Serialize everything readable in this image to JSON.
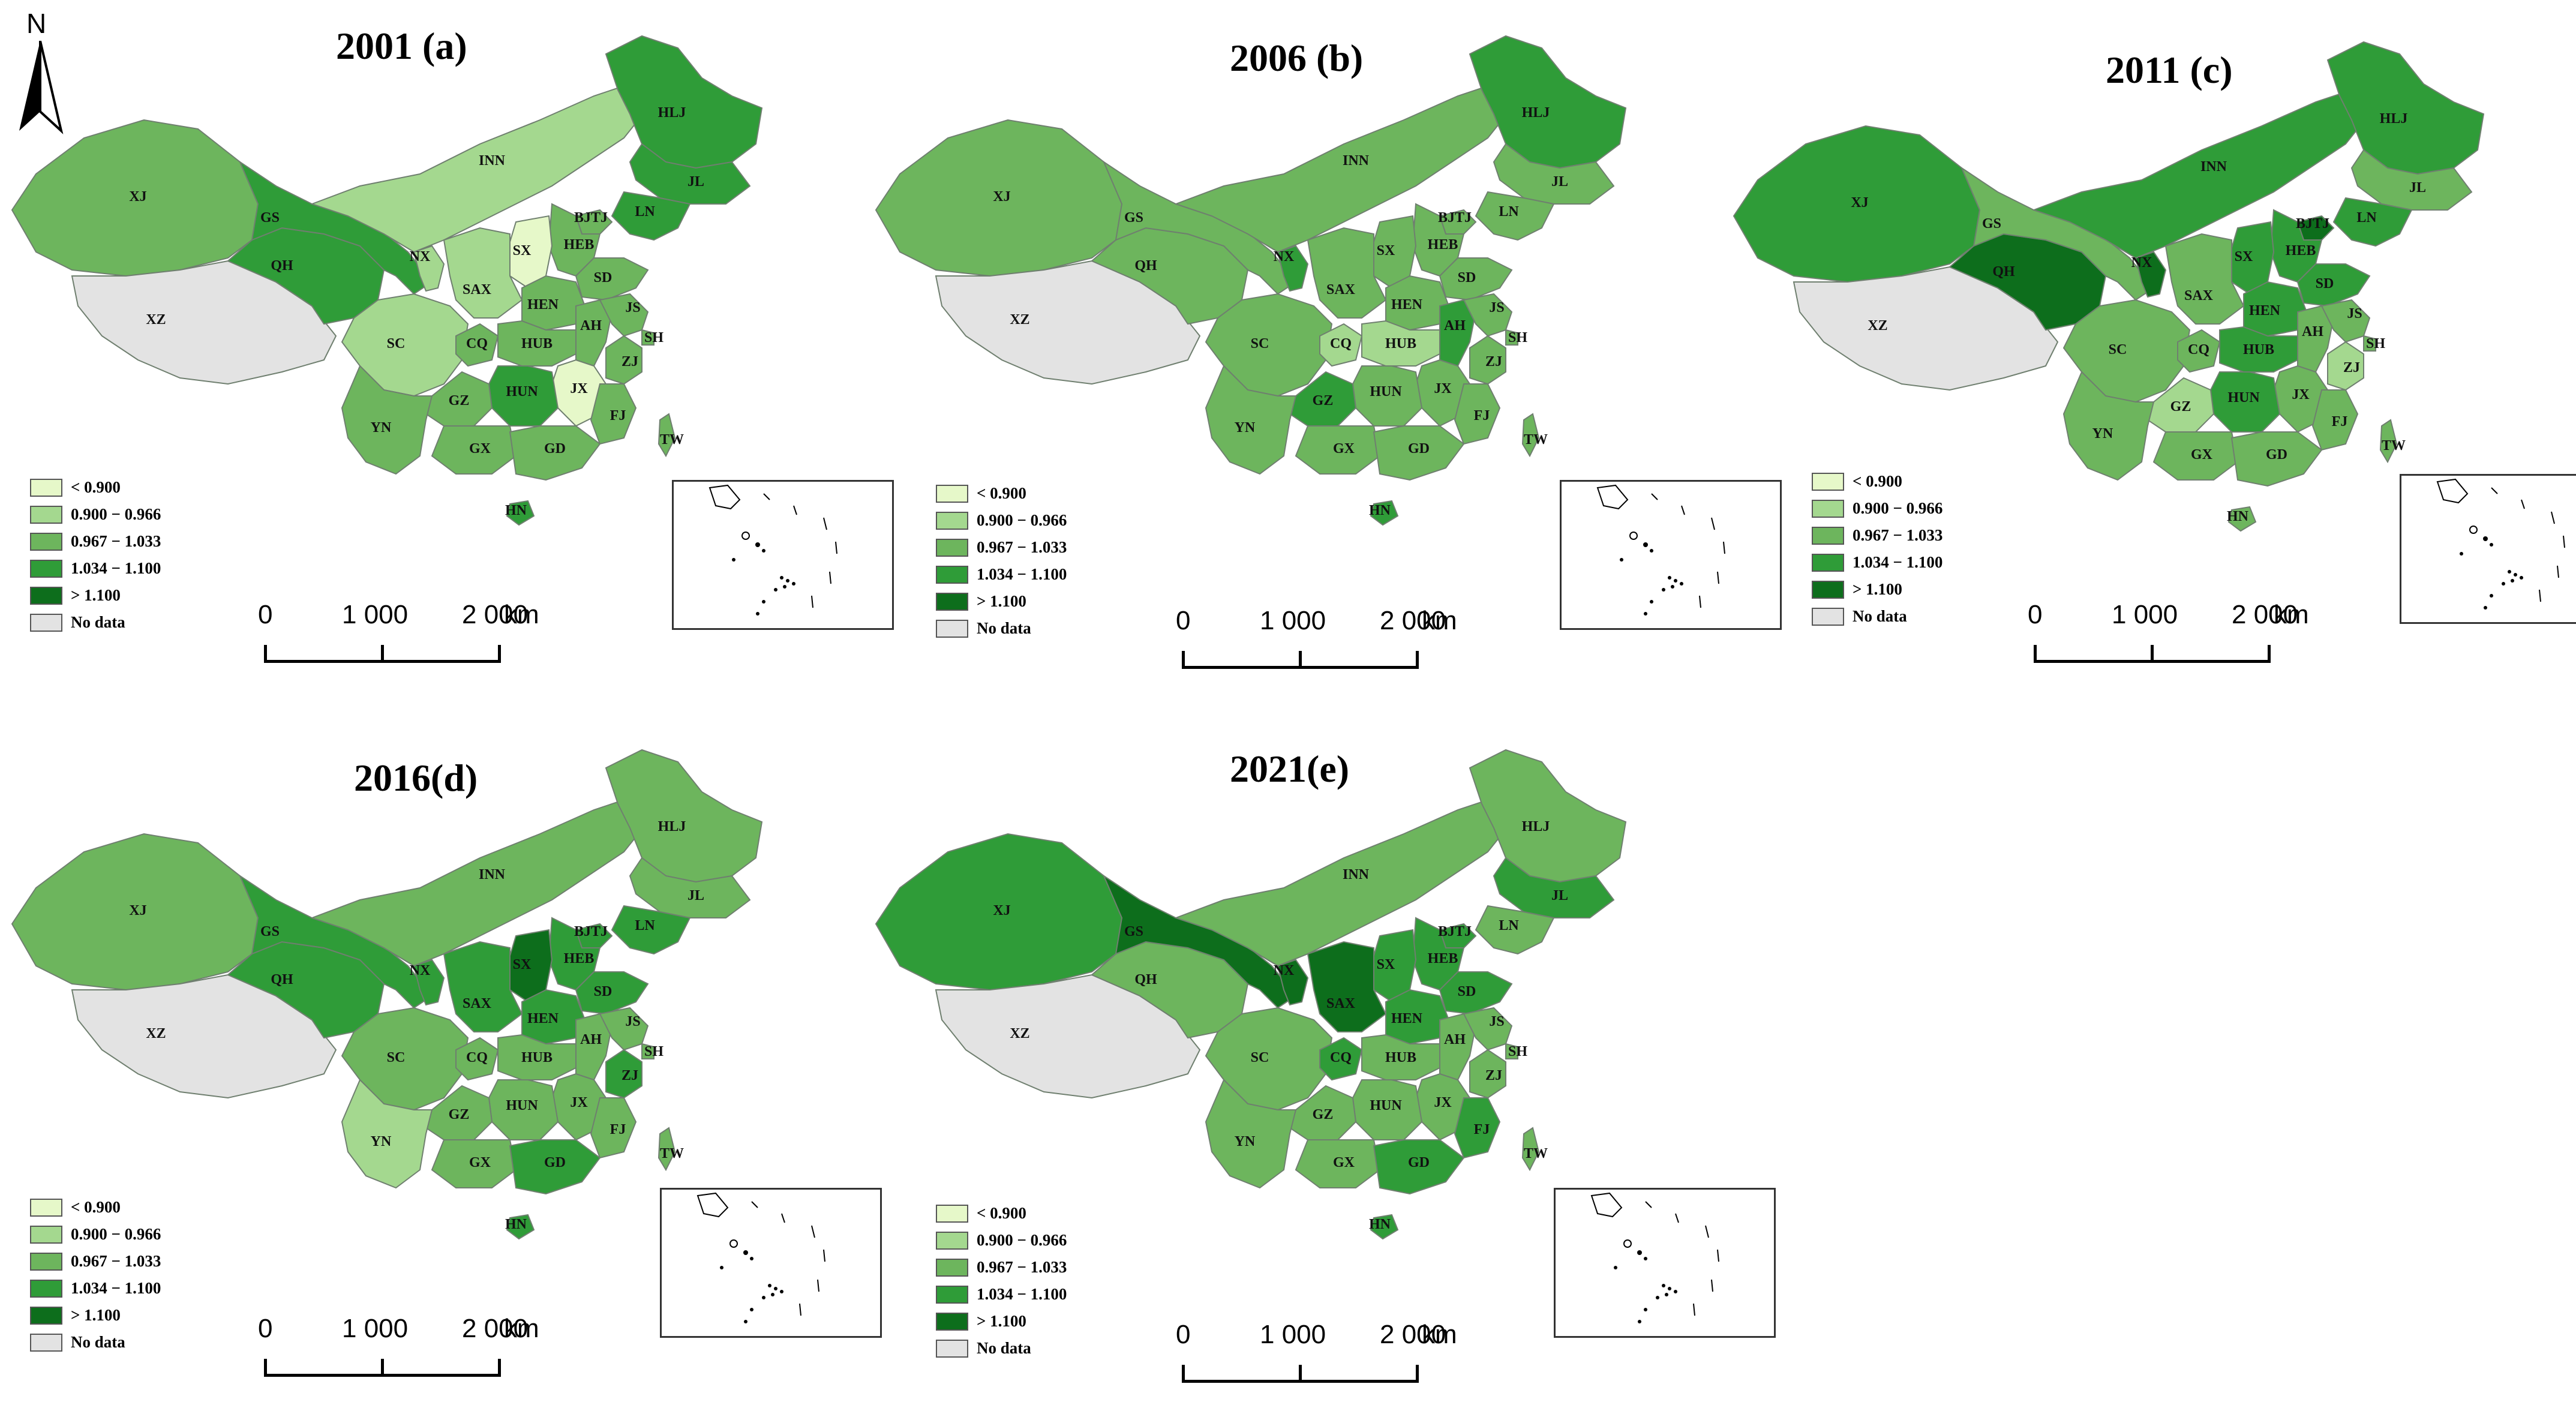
{
  "north_label": "N",
  "legend": {
    "items": [
      {
        "label": "< 0.900",
        "color": "#e6f8c9"
      },
      {
        "label": "0.900 − 0.966",
        "color": "#a4d88f"
      },
      {
        "label": "0.967 − 1.033",
        "color": "#6db55d"
      },
      {
        "label": "1.034 − 1.100",
        "color": "#2f9c38"
      },
      {
        "label": "> 1.100",
        "color": "#0d6e1c"
      },
      {
        "label": "No data",
        "color": "#e3e3e3"
      }
    ]
  },
  "scale": {
    "zero": "0",
    "mid": "1 000",
    "max": "2 000",
    "unit": "km"
  },
  "classes": {
    "c1": "#e6f8c9",
    "c2": "#a4d88f",
    "c3": "#6db55d",
    "c4": "#2f9c38",
    "c5": "#0d6e1c",
    "nodata": "#e3e3e3"
  },
  "panels": [
    {
      "title": "2001 (a)",
      "values": {
        "XJ": "c3",
        "XZ": "nodata",
        "QH": "c4",
        "GS": "c4",
        "NX": "c2",
        "INN": "c2",
        "HLJ": "c4",
        "JL": "c4",
        "LN": "c4",
        "BJTJ": "c3",
        "HEB": "c3",
        "SX": "c1",
        "SD": "c3",
        "SAX": "c2",
        "HEN": "c3",
        "SC": "c2",
        "CQ": "c3",
        "HUB": "c3",
        "AH": "c3",
        "JS": "c3",
        "SH": "c3",
        "ZJ": "c3",
        "JX": "c1",
        "HUN": "c4",
        "GZ": "c3",
        "YN": "c3",
        "GX": "c3",
        "GD": "c3",
        "FJ": "c3",
        "HN": "c4",
        "TW": "c3"
      },
      "labels": [
        "XJ",
        "XZ",
        "GS",
        "QH",
        "NX",
        "INN",
        "HLJ",
        "JL",
        "LN",
        "BJTJ",
        "SX",
        "HEB",
        "SD",
        "SAX",
        "HEN",
        "SC",
        "CQ",
        "HUB",
        "AH",
        "JS",
        "SH",
        "ZJ",
        "JX",
        "HUN",
        "GZ",
        "FJ",
        "YN",
        "GX",
        "GD",
        "TW",
        "HN"
      ]
    },
    {
      "title": "2006 (b)",
      "values": {
        "XJ": "c3",
        "XZ": "nodata",
        "QH": "c3",
        "GS": "c3",
        "NX": "c4",
        "INN": "c3",
        "HLJ": "c4",
        "JL": "c3",
        "LN": "c3",
        "BJTJ": "c3",
        "HEB": "c3",
        "SX": "c3",
        "SD": "c3",
        "SAX": "c3",
        "HEN": "c3",
        "SC": "c3",
        "CQ": "c2",
        "HUB": "c2",
        "AH": "c4",
        "JS": "c3",
        "SH": "c3",
        "ZJ": "c3",
        "JX": "c3",
        "HUN": "c3",
        "GZ": "c4",
        "YN": "c3",
        "GX": "c3",
        "GD": "c3",
        "FJ": "c3",
        "HN": "c4",
        "TW": "c3"
      },
      "labels": [
        "XJ",
        "XZ",
        "GS",
        "QH",
        "NX",
        "INN",
        "HLJ",
        "JL",
        "LN",
        "BJTJ",
        "SX",
        "HEB",
        "SD",
        "SAX",
        "HEN",
        "SC",
        "CQ",
        "HUB",
        "AH",
        "JS",
        "SH",
        "ZJ",
        "JX",
        "HUN",
        "GZ",
        "FJ",
        "YN",
        "GX",
        "GD",
        "TW",
        "HN"
      ]
    },
    {
      "title": "2011 (c)",
      "values": {
        "XJ": "c4",
        "XZ": "nodata",
        "QH": "c5",
        "GS": "c3",
        "NX": "c5",
        "INN": "c4",
        "HLJ": "c4",
        "JL": "c3",
        "LN": "c4",
        "BJTJ": "c5",
        "HEB": "c4",
        "SX": "c4",
        "SD": "c4",
        "SAX": "c3",
        "HEN": "c4",
        "SC": "c3",
        "CQ": "c3",
        "HUB": "c4",
        "AH": "c3",
        "JS": "c3",
        "SH": "c3",
        "ZJ": "c2",
        "JX": "c3",
        "HUN": "c4",
        "GZ": "c2",
        "YN": "c3",
        "GX": "c3",
        "GD": "c3",
        "FJ": "c3",
        "HN": "c3",
        "TW": "c3"
      },
      "labels": [
        "XJ",
        "XZ",
        "GS",
        "QH",
        "NX",
        "INN",
        "HLJ",
        "JL",
        "LN",
        "BJTJ",
        "SX",
        "HEB",
        "SD",
        "SAX",
        "HEN",
        "SC",
        "CQ",
        "HUB",
        "AH",
        "JS",
        "SH",
        "ZJ",
        "JX",
        "HUN",
        "GZ",
        "FJ",
        "YN",
        "GX",
        "GD",
        "TW",
        "HN"
      ]
    },
    {
      "title": "2016(d)",
      "values": {
        "XJ": "c3",
        "XZ": "nodata",
        "QH": "c4",
        "GS": "c4",
        "NX": "c4",
        "INN": "c3",
        "HLJ": "c3",
        "JL": "c3",
        "LN": "c4",
        "BJTJ": "c4",
        "HEB": "c4",
        "SX": "c5",
        "SD": "c4",
        "SAX": "c4",
        "HEN": "c4",
        "SC": "c3",
        "CQ": "c3",
        "HUB": "c3",
        "AH": "c3",
        "JS": "c3",
        "SH": "c3",
        "ZJ": "c4",
        "JX": "c3",
        "HUN": "c3",
        "GZ": "c3",
        "YN": "c2",
        "GX": "c3",
        "GD": "c4",
        "FJ": "c3",
        "HN": "c4",
        "TW": "c3"
      },
      "labels": [
        "XJ",
        "XZ",
        "GS",
        "QH",
        "NX",
        "INN",
        "HLJ",
        "JL",
        "LN",
        "BJTJ",
        "SX",
        "HEB",
        "SD",
        "SAX",
        "HEN",
        "SC",
        "CQ",
        "HUB",
        "AH",
        "JS",
        "SH",
        "ZJ",
        "JX",
        "HUN",
        "GZ",
        "FJ",
        "YN",
        "GX",
        "GD",
        "TW",
        "HN"
      ]
    },
    {
      "title": "2021(e)",
      "values": {
        "XJ": "c4",
        "XZ": "nodata",
        "QH": "c3",
        "GS": "c5",
        "NX": "c5",
        "INN": "c3",
        "HLJ": "c3",
        "JL": "c4",
        "LN": "c3",
        "BJTJ": "c4",
        "HEB": "c4",
        "SX": "c4",
        "SD": "c4",
        "SAX": "c5",
        "HEN": "c4",
        "SC": "c3",
        "CQ": "c4",
        "HUB": "c3",
        "AH": "c3",
        "JS": "c3",
        "SH": "c3",
        "ZJ": "c3",
        "JX": "c3",
        "HUN": "c3",
        "GZ": "c3",
        "YN": "c3",
        "GX": "c3",
        "GD": "c4",
        "FJ": "c4",
        "HN": "c4",
        "TW": "c3"
      },
      "labels": [
        "XJ",
        "XZ",
        "GS",
        "QH",
        "NX",
        "INN",
        "HLJ",
        "JL",
        "LN",
        "BJTJ",
        "SX",
        "HEB",
        "SD",
        "SAX",
        "HEN",
        "SC",
        "CQ",
        "HUB",
        "AH",
        "JS",
        "SH",
        "ZJ",
        "JX",
        "HUN",
        "GZ",
        "FJ",
        "YN",
        "GX",
        "GD",
        "TW",
        "HN"
      ]
    }
  ]
}
